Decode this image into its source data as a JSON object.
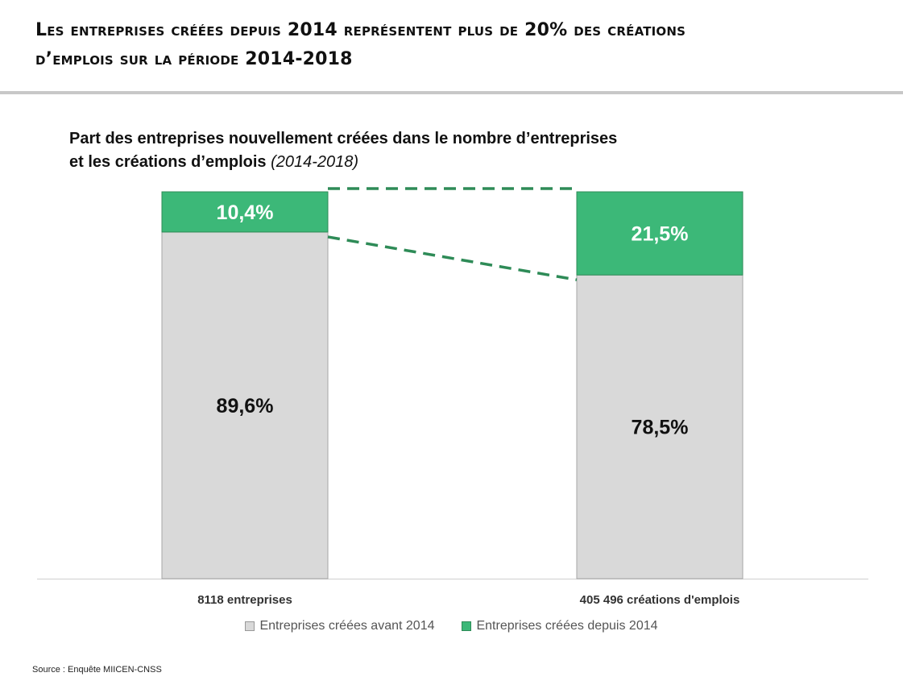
{
  "slide": {
    "title_line1": "Les entreprises créées depuis 2014 représentent plus de 20% des créations",
    "title_line2": "d’emplois sur la période 2014-2018"
  },
  "source": "Source : Enquête MIICEN-CNSS",
  "colors": {
    "before": "#d9d9d9",
    "since": "#3cb878",
    "connector": "#2e8b57"
  },
  "chart_data": {
    "type": "bar",
    "stacked": true,
    "percent_stacked": true,
    "title": "Part des entreprises nouvellement créées dans le nombre d’entreprises et les créations d’emplois",
    "title_line1": "Part des entreprises nouvellement créées dans le nombre d’entreprises",
    "title_line2": "et les créations d’emplois",
    "subtitle": "(2014-2018)",
    "categories": [
      "8118 entreprises",
      "405 496 créations d'emplois"
    ],
    "series": [
      {
        "name": "Entreprises créées avant 2014",
        "values": [
          89.6,
          78.5
        ],
        "labels": [
          "89,6%",
          "78,5%"
        ],
        "color": "#d9d9d9"
      },
      {
        "name": "Entreprises créées depuis 2014",
        "values": [
          10.4,
          21.5
        ],
        "labels": [
          "10,4%",
          "21,5%"
        ],
        "color": "#3cb878"
      }
    ],
    "ylim": [
      0,
      100
    ],
    "grid": false,
    "legend_position": "bottom",
    "connector_lines": "dashed"
  }
}
